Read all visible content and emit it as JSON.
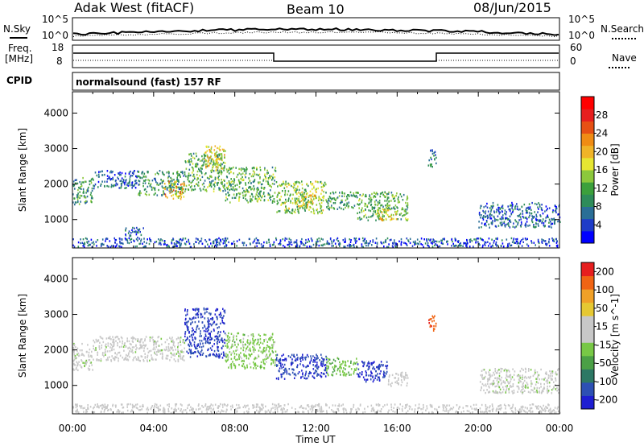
{
  "header": {
    "station": "Adak West (fitACF)",
    "beam": "Beam 10",
    "date": "08/Jun/2015"
  },
  "top_panels": {
    "nsky_label": "N.Sky",
    "nsearch_label": "N.Search",
    "noise_ticks": [
      "10^5",
      "10^0"
    ],
    "freq_label_1": "Freq.",
    "freq_label_2": "[MHz]",
    "freq_ticks": [
      "18",
      "8"
    ],
    "nave_label": "Nave",
    "nave_ticks": [
      "60",
      "0"
    ],
    "cpid_label": "CPID",
    "cpid_text": "normalsound (fast) 157 RF"
  },
  "chart_data": [
    {
      "type": "heatmap",
      "name": "power",
      "ylabel": "Slant Range [km]",
      "xlabel": "",
      "yticks": [
        1000,
        2000,
        3000,
        4000
      ],
      "ylim": [
        200,
        4600
      ],
      "xlim": [
        0,
        24
      ],
      "colorbar": {
        "label": "Power [dB]",
        "ticks": [
          4,
          8,
          12,
          16,
          20,
          24,
          28
        ],
        "range": [
          0,
          32
        ],
        "colors": [
          "#0000ff",
          "#1e3cc8",
          "#2a6e96",
          "#2e8c5a",
          "#3ca03c",
          "#8cc83c",
          "#e6e632",
          "#f0b428",
          "#f08c14",
          "#e65014",
          "#e61e1e",
          "#ff0000"
        ]
      },
      "regions": [
        {
          "t": [
            0.0,
            1.0
          ],
          "r": [
            1450,
            2200
          ],
          "v": 10
        },
        {
          "t": [
            1.0,
            3.2
          ],
          "r": [
            1900,
            2400
          ],
          "v": 6
        },
        {
          "t": [
            3.2,
            5.5
          ],
          "r": [
            1700,
            2400
          ],
          "v": 10
        },
        {
          "t": [
            4.5,
            5.5
          ],
          "r": [
            1600,
            2100
          ],
          "v": 20
        },
        {
          "t": [
            5.5,
            7.5
          ],
          "r": [
            1800,
            2900
          ],
          "v": 12
        },
        {
          "t": [
            6.5,
            7.5
          ],
          "r": [
            2400,
            3100
          ],
          "v": 18
        },
        {
          "t": [
            7.5,
            10.0
          ],
          "r": [
            1500,
            2500
          ],
          "v": 12
        },
        {
          "t": [
            10.0,
            12.5
          ],
          "r": [
            1200,
            2100
          ],
          "v": 14
        },
        {
          "t": [
            11.0,
            12.0
          ],
          "r": [
            1400,
            1800
          ],
          "v": 18
        },
        {
          "t": [
            12.5,
            14.0
          ],
          "r": [
            1300,
            1800
          ],
          "v": 10
        },
        {
          "t": [
            14.0,
            16.5
          ],
          "r": [
            1000,
            1800
          ],
          "v": 12
        },
        {
          "t": [
            15.0,
            16.0
          ],
          "r": [
            1000,
            1300
          ],
          "v": 18
        },
        {
          "t": [
            17.5,
            17.9
          ],
          "r": [
            2500,
            3000
          ],
          "v": 8
        },
        {
          "t": [
            20.0,
            24.0
          ],
          "r": [
            800,
            1500
          ],
          "v": 6
        },
        {
          "t": [
            2.5,
            3.5
          ],
          "r": [
            500,
            800
          ],
          "v": 6
        },
        {
          "t": [
            0.0,
            24.0
          ],
          "r": [
            250,
            500
          ],
          "v": 5
        }
      ]
    },
    {
      "type": "heatmap",
      "name": "velocity",
      "ylabel": "Slant Range [km]",
      "xlabel": "Time UT",
      "xticks": [
        "00:00",
        "04:00",
        "08:00",
        "12:00",
        "16:00",
        "20:00",
        "00:00"
      ],
      "yticks": [
        1000,
        2000,
        3000,
        4000
      ],
      "ylim": [
        200,
        4600
      ],
      "xlim": [
        0,
        24
      ],
      "colorbar": {
        "label": "Velocity [m s^-1]",
        "ticks": [
          200,
          100,
          50,
          15,
          -15,
          -50,
          -100,
          -200
        ],
        "range": [
          -250,
          250
        ],
        "colors": [
          "#1e1ed2",
          "#2d50b4",
          "#2d7864",
          "#4ba046",
          "#78c846",
          "#c8c8c8",
          "#c8c8c8",
          "#e6c832",
          "#f0a028",
          "#f06414",
          "#e61e1e"
        ]
      },
      "regions": [
        {
          "t": [
            0.0,
            1.0
          ],
          "r": [
            1450,
            2200
          ],
          "v": 0
        },
        {
          "t": [
            1.0,
            5.5
          ],
          "r": [
            1700,
            2400
          ],
          "v": 0
        },
        {
          "t": [
            5.5,
            7.5
          ],
          "r": [
            1800,
            3200
          ],
          "v": -200
        },
        {
          "t": [
            7.5,
            10.0
          ],
          "r": [
            1500,
            2500
          ],
          "v": -40
        },
        {
          "t": [
            10.0,
            12.5
          ],
          "r": [
            1200,
            1900
          ],
          "v": -200
        },
        {
          "t": [
            12.5,
            14.0
          ],
          "r": [
            1300,
            1800
          ],
          "v": -60
        },
        {
          "t": [
            14.0,
            15.5
          ],
          "r": [
            1100,
            1700
          ],
          "v": -200
        },
        {
          "t": [
            15.5,
            16.5
          ],
          "r": [
            1000,
            1400
          ],
          "v": 30
        },
        {
          "t": [
            17.5,
            17.9
          ],
          "r": [
            2500,
            3000
          ],
          "v": 200
        },
        {
          "t": [
            20.0,
            24.0
          ],
          "r": [
            800,
            1500
          ],
          "v": 0
        },
        {
          "t": [
            0.0,
            24.0
          ],
          "r": [
            250,
            500
          ],
          "v": 30
        }
      ]
    }
  ]
}
